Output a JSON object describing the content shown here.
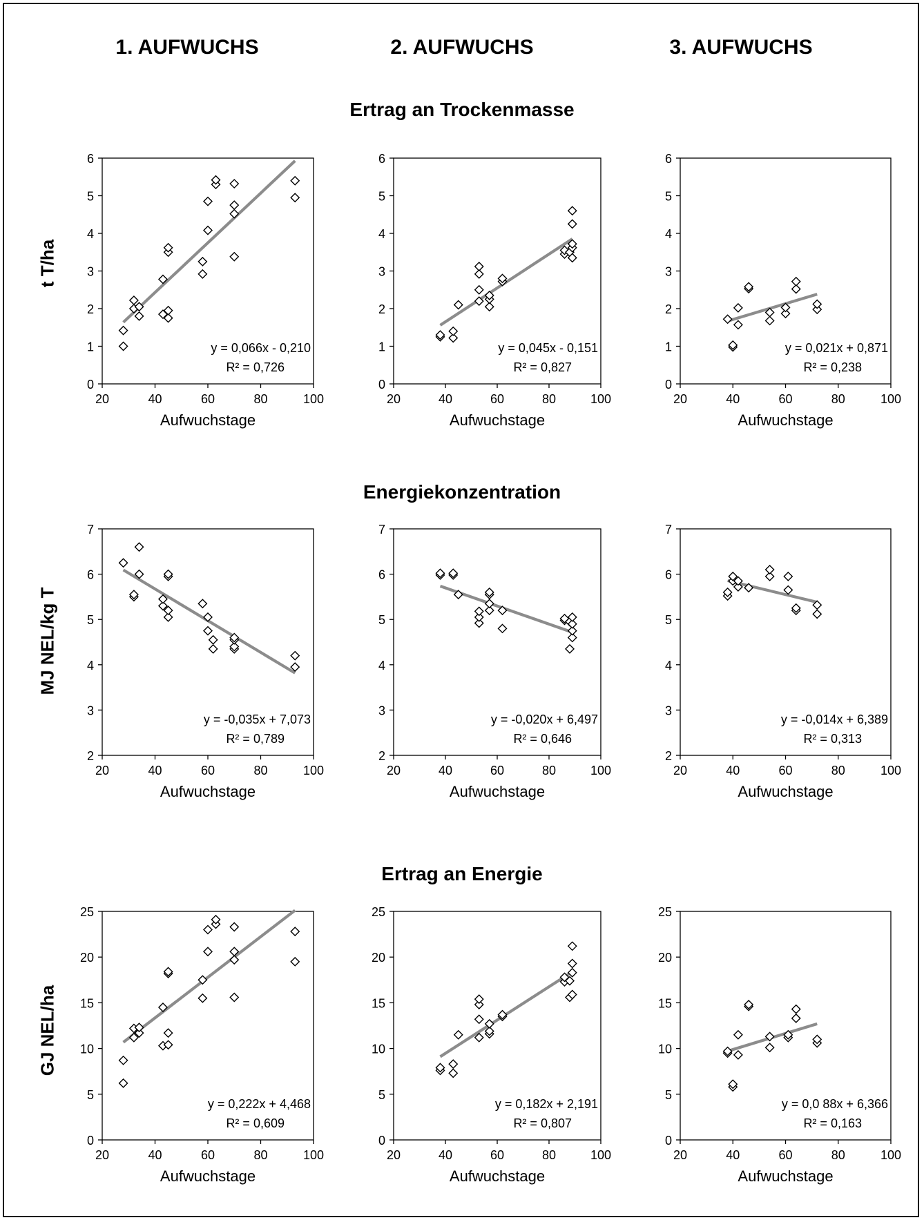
{
  "columns": [
    "1. AUFWUCHS",
    "2. AUFWUCHS",
    "3. AUFWUCHS"
  ],
  "rows": [
    {
      "title": "Ertrag an Trockenmasse",
      "ylabel": "t T/ha"
    },
    {
      "title": "Energiekonzentration",
      "ylabel": "MJ NEL/kg T"
    },
    {
      "title": "Ertrag an Energie",
      "ylabel": "GJ NEL/ha"
    }
  ],
  "chart_data": [
    {
      "type": "scatter",
      "xlabel": "Aufwuchstage",
      "ylabel": "t T/ha",
      "xlim": [
        20,
        100
      ],
      "ylim": [
        0,
        6
      ],
      "xticks": [
        20,
        40,
        60,
        80,
        100
      ],
      "yticks": [
        0,
        1,
        2,
        3,
        4,
        5,
        6
      ],
      "trend": {
        "slope": 0.066,
        "intercept": -0.21,
        "x_range": [
          28,
          93
        ]
      },
      "equation": "y = 0,066x - 0,210",
      "r2": "R² = 0,726",
      "points": [
        [
          28,
          1.0
        ],
        [
          28,
          1.42
        ],
        [
          32,
          2.0
        ],
        [
          32,
          2.22
        ],
        [
          34,
          1.8
        ],
        [
          34,
          2.05
        ],
        [
          43,
          1.85
        ],
        [
          43,
          2.78
        ],
        [
          45,
          1.75
        ],
        [
          45,
          1.95
        ],
        [
          45,
          3.5
        ],
        [
          45,
          3.62
        ],
        [
          58,
          2.92
        ],
        [
          58,
          3.25
        ],
        [
          60,
          4.08
        ],
        [
          60,
          4.85
        ],
        [
          63,
          5.3
        ],
        [
          63,
          5.42
        ],
        [
          70,
          3.38
        ],
        [
          70,
          4.52
        ],
        [
          70,
          4.75
        ],
        [
          70,
          5.32
        ],
        [
          93,
          4.95
        ],
        [
          93,
          5.4
        ]
      ]
    },
    {
      "type": "scatter",
      "xlabel": "Aufwuchstage",
      "ylabel": "",
      "xlim": [
        20,
        100
      ],
      "ylim": [
        0,
        6
      ],
      "xticks": [
        20,
        40,
        60,
        80,
        100
      ],
      "yticks": [
        0,
        1,
        2,
        3,
        4,
        5,
        6
      ],
      "trend": {
        "slope": 0.045,
        "intercept": -0.151,
        "x_range": [
          38,
          89
        ]
      },
      "equation": "y = 0,045x - 0,151",
      "r2": "R² = 0,827",
      "points": [
        [
          38,
          1.25
        ],
        [
          38,
          1.3
        ],
        [
          43,
          1.22
        ],
        [
          43,
          1.4
        ],
        [
          45,
          2.1
        ],
        [
          53,
          2.2
        ],
        [
          53,
          2.5
        ],
        [
          53,
          2.92
        ],
        [
          53,
          3.12
        ],
        [
          57,
          2.05
        ],
        [
          57,
          2.25
        ],
        [
          57,
          2.35
        ],
        [
          62,
          2.72
        ],
        [
          62,
          2.8
        ],
        [
          86,
          3.45
        ],
        [
          86,
          3.55
        ],
        [
          88,
          3.5
        ],
        [
          89,
          3.35
        ],
        [
          89,
          3.62
        ],
        [
          89,
          3.72
        ],
        [
          89,
          4.25
        ],
        [
          89,
          4.6
        ]
      ]
    },
    {
      "type": "scatter",
      "xlabel": "Aufwuchstage",
      "ylabel": "",
      "xlim": [
        20,
        100
      ],
      "ylim": [
        0,
        6
      ],
      "xticks": [
        20,
        40,
        60,
        80,
        100
      ],
      "yticks": [
        0,
        1,
        2,
        3,
        4,
        5,
        6
      ],
      "trend": {
        "slope": 0.021,
        "intercept": 0.871,
        "x_range": [
          38,
          72
        ]
      },
      "equation": "y = 0,021x + 0,871",
      "r2": "R² = 0,238",
      "points": [
        [
          38,
          1.72
        ],
        [
          40,
          0.98
        ],
        [
          40,
          1.03
        ],
        [
          42,
          1.57
        ],
        [
          42,
          2.02
        ],
        [
          46,
          2.53
        ],
        [
          46,
          2.58
        ],
        [
          54,
          1.68
        ],
        [
          54,
          1.9
        ],
        [
          60,
          1.87
        ],
        [
          60,
          2.03
        ],
        [
          64,
          2.52
        ],
        [
          64,
          2.72
        ],
        [
          72,
          1.98
        ],
        [
          72,
          2.12
        ]
      ]
    },
    {
      "type": "scatter",
      "xlabel": "Aufwuchstage",
      "ylabel": "MJ NEL/kg T",
      "xlim": [
        20,
        100
      ],
      "ylim": [
        2,
        7
      ],
      "xticks": [
        20,
        40,
        60,
        80,
        100
      ],
      "yticks": [
        2,
        3,
        4,
        5,
        6,
        7
      ],
      "trend": {
        "slope": -0.035,
        "intercept": 7.073,
        "x_range": [
          28,
          93
        ]
      },
      "equation": "y = -0,035x + 7,073",
      "r2": "R² = 0,789",
      "points": [
        [
          28,
          6.25
        ],
        [
          32,
          5.5
        ],
        [
          32,
          5.55
        ],
        [
          34,
          6.0
        ],
        [
          34,
          6.6
        ],
        [
          43,
          5.3
        ],
        [
          43,
          5.45
        ],
        [
          45,
          5.05
        ],
        [
          45,
          5.2
        ],
        [
          45,
          5.95
        ],
        [
          45,
          6.0
        ],
        [
          58,
          5.35
        ],
        [
          60,
          4.75
        ],
        [
          60,
          5.05
        ],
        [
          62,
          4.35
        ],
        [
          62,
          4.55
        ],
        [
          70,
          4.35
        ],
        [
          70,
          4.4
        ],
        [
          70,
          4.55
        ],
        [
          70,
          4.6
        ],
        [
          93,
          3.95
        ],
        [
          93,
          4.2
        ]
      ]
    },
    {
      "type": "scatter",
      "xlabel": "Aufwuchstage",
      "ylabel": "",
      "xlim": [
        20,
        100
      ],
      "ylim": [
        2,
        7
      ],
      "xticks": [
        20,
        40,
        60,
        80,
        100
      ],
      "yticks": [
        2,
        3,
        4,
        5,
        6,
        7
      ],
      "trend": {
        "slope": -0.02,
        "intercept": 6.497,
        "x_range": [
          38,
          89
        ]
      },
      "equation": "y = -0,020x + 6,497",
      "r2": "R² = 0,646",
      "points": [
        [
          38,
          5.98
        ],
        [
          38,
          6.02
        ],
        [
          43,
          5.98
        ],
        [
          43,
          6.02
        ],
        [
          45,
          5.55
        ],
        [
          53,
          4.92
        ],
        [
          53,
          5.05
        ],
        [
          53,
          5.18
        ],
        [
          57,
          5.2
        ],
        [
          57,
          5.35
        ],
        [
          57,
          5.55
        ],
        [
          57,
          5.6
        ],
        [
          62,
          4.8
        ],
        [
          62,
          5.2
        ],
        [
          86,
          4.98
        ],
        [
          86,
          5.02
        ],
        [
          88,
          4.35
        ],
        [
          88,
          4.95
        ],
        [
          89,
          4.6
        ],
        [
          89,
          4.75
        ],
        [
          89,
          4.9
        ],
        [
          89,
          5.05
        ]
      ]
    },
    {
      "type": "scatter",
      "xlabel": "Aufwuchstage",
      "ylabel": "",
      "xlim": [
        20,
        100
      ],
      "ylim": [
        2,
        7
      ],
      "xticks": [
        20,
        40,
        60,
        80,
        100
      ],
      "yticks": [
        2,
        3,
        4,
        5,
        6,
        7
      ],
      "trend": {
        "slope": -0.014,
        "intercept": 6.389,
        "x_range": [
          38,
          72
        ]
      },
      "equation": "y = -0,014x + 6,389",
      "r2": "R² = 0,313",
      "points": [
        [
          38,
          5.52
        ],
        [
          38,
          5.6
        ],
        [
          40,
          5.85
        ],
        [
          40,
          5.95
        ],
        [
          42,
          5.72
        ],
        [
          42,
          5.85
        ],
        [
          46,
          5.7
        ],
        [
          54,
          5.95
        ],
        [
          54,
          6.1
        ],
        [
          61,
          5.65
        ],
        [
          61,
          5.95
        ],
        [
          64,
          5.2
        ],
        [
          64,
          5.25
        ],
        [
          72,
          5.12
        ],
        [
          72,
          5.32
        ]
      ]
    },
    {
      "type": "scatter",
      "xlabel": "Aufwuchstage",
      "ylabel": "GJ NEL/ha",
      "xlim": [
        20,
        100
      ],
      "ylim": [
        0,
        25
      ],
      "xticks": [
        20,
        40,
        60,
        80,
        100
      ],
      "yticks": [
        0,
        5,
        10,
        15,
        20,
        25
      ],
      "trend": {
        "slope": 0.222,
        "intercept": 4.468,
        "x_range": [
          28,
          93
        ]
      },
      "equation": "y = 0,222x + 4,468",
      "r2": "R² = 0,609",
      "points": [
        [
          28,
          6.2
        ],
        [
          28,
          8.7
        ],
        [
          32,
          11.2
        ],
        [
          32,
          12.2
        ],
        [
          34,
          11.7
        ],
        [
          34,
          12.3
        ],
        [
          43,
          10.3
        ],
        [
          43,
          14.5
        ],
        [
          45,
          10.4
        ],
        [
          45,
          11.7
        ],
        [
          45,
          18.2
        ],
        [
          45,
          18.4
        ],
        [
          58,
          15.5
        ],
        [
          58,
          17.5
        ],
        [
          60,
          20.6
        ],
        [
          60,
          23.0
        ],
        [
          63,
          23.6
        ],
        [
          63,
          24.1
        ],
        [
          70,
          15.6
        ],
        [
          70,
          19.7
        ],
        [
          70,
          20.6
        ],
        [
          70,
          23.3
        ],
        [
          93,
          19.5
        ],
        [
          93,
          22.8
        ]
      ]
    },
    {
      "type": "scatter",
      "xlabel": "Aufwuchstage",
      "ylabel": "",
      "xlim": [
        20,
        100
      ],
      "ylim": [
        0,
        25
      ],
      "xticks": [
        20,
        40,
        60,
        80,
        100
      ],
      "yticks": [
        0,
        5,
        10,
        15,
        20,
        25
      ],
      "trend": {
        "slope": 0.182,
        "intercept": 2.191,
        "x_range": [
          38,
          89
        ]
      },
      "equation": "y = 0,182x + 2,191",
      "r2": "R² = 0,807",
      "points": [
        [
          38,
          7.6
        ],
        [
          38,
          7.9
        ],
        [
          43,
          7.3
        ],
        [
          43,
          8.3
        ],
        [
          45,
          11.5
        ],
        [
          53,
          11.2
        ],
        [
          53,
          13.2
        ],
        [
          53,
          14.8
        ],
        [
          53,
          15.4
        ],
        [
          57,
          11.6
        ],
        [
          57,
          11.9
        ],
        [
          57,
          12.7
        ],
        [
          62,
          13.5
        ],
        [
          62,
          13.7
        ],
        [
          86,
          17.3
        ],
        [
          86,
          17.8
        ],
        [
          88,
          15.6
        ],
        [
          88,
          17.4
        ],
        [
          89,
          15.9
        ],
        [
          89,
          18.3
        ],
        [
          89,
          19.3
        ],
        [
          89,
          21.2
        ]
      ]
    },
    {
      "type": "scatter",
      "xlabel": "Aufwuchstage",
      "ylabel": "",
      "xlim": [
        20,
        100
      ],
      "ylim": [
        0,
        25
      ],
      "xticks": [
        20,
        40,
        60,
        80,
        100
      ],
      "yticks": [
        0,
        5,
        10,
        15,
        20,
        25
      ],
      "trend": {
        "slope": 0.088,
        "intercept": 6.366,
        "x_range": [
          38,
          72
        ]
      },
      "equation": "y = 0,0 88x + 6,366",
      "r2": "R² = 0,163",
      "points": [
        [
          38,
          9.5
        ],
        [
          38,
          9.7
        ],
        [
          40,
          5.8
        ],
        [
          40,
          6.1
        ],
        [
          42,
          9.3
        ],
        [
          42,
          11.5
        ],
        [
          46,
          14.6
        ],
        [
          46,
          14.8
        ],
        [
          54,
          10.1
        ],
        [
          54,
          11.3
        ],
        [
          61,
          11.2
        ],
        [
          61,
          11.5
        ],
        [
          64,
          13.3
        ],
        [
          64,
          14.3
        ],
        [
          72,
          10.6
        ],
        [
          72,
          11.0
        ]
      ]
    }
  ]
}
